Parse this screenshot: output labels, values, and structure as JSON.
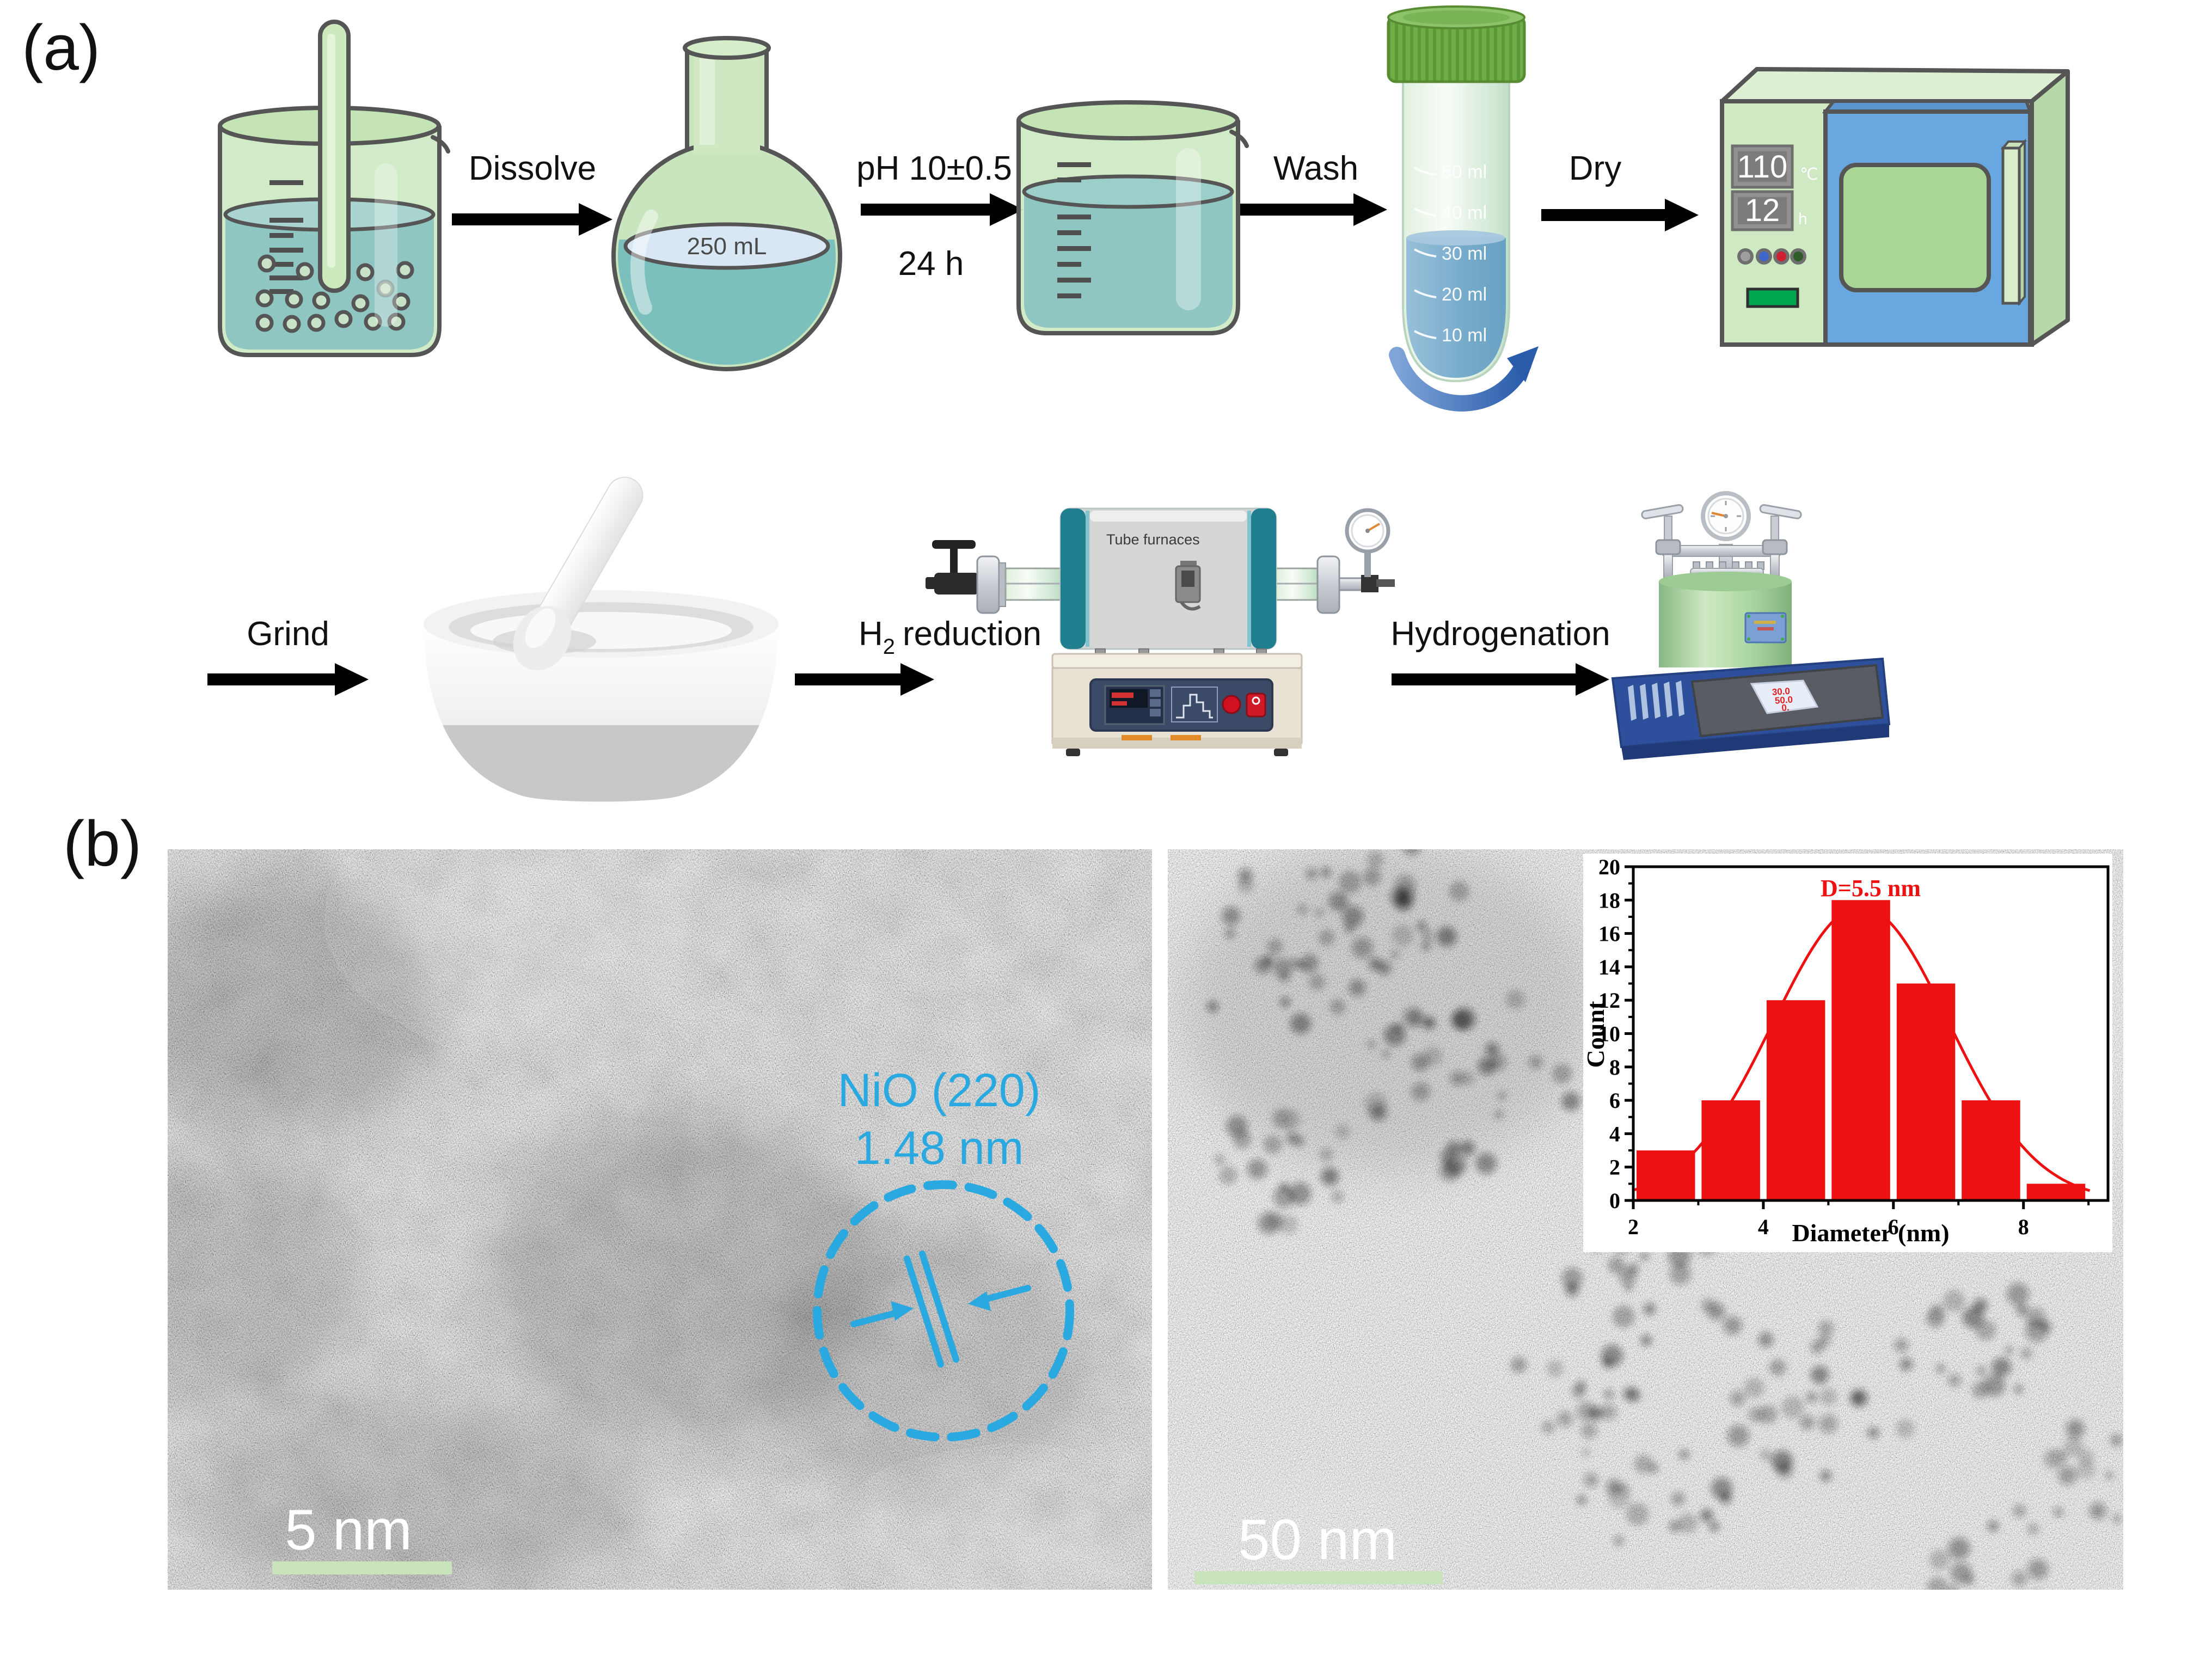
{
  "colors": {
    "annotation_cyan": "#2aa9e1",
    "histogram_red": "#ee1111",
    "scalebar_green": "#c9e4bd",
    "glass_green": "#cde8c2",
    "liquid_teal": "#8fc6c2",
    "oven_door_blue": "#69a7e0",
    "cap_green": "#6fae46",
    "reactor_base_blue": "#2e4f9b",
    "furnace_teal": "#1f7f8e"
  },
  "panel_a": {
    "label": "(a)",
    "row1": {
      "arrow1_label": "Dissolve",
      "flask_volume": "250 mL",
      "arrow2_label_top": "pH 10±0.5",
      "arrow2_label_bottom": "24 h",
      "arrow3_label": "Wash",
      "tube_graduations": [
        "50 ml",
        "40 ml",
        "30 ml",
        "20 ml",
        "10 ml"
      ],
      "arrow4_label": "Dry",
      "oven": {
        "temp_value": "110",
        "temp_unit": "℃",
        "time_value": "12",
        "time_unit": "h"
      }
    },
    "row2": {
      "arrow1_label": "Grind",
      "h2_prefix": "H",
      "h2_sub": "2",
      "h2_suffix": "reduction",
      "furnace_label": "Tube furnaces",
      "arrow3_label": "Hydrogenation",
      "reactor_display": [
        "30.0",
        "50.0",
        "0."
      ]
    }
  },
  "panel_b": {
    "label": "(b)",
    "left_tem": {
      "annotation_line1": "NiO (220)",
      "annotation_line2": "1.48 nm",
      "scale_label": "5 nm"
    },
    "right_tem": {
      "scale_label": "50 nm"
    }
  },
  "chart_data": {
    "type": "bar",
    "title": "",
    "xlabel": "Diameter (nm)",
    "ylabel": "Count",
    "annotation": "D=5.5 nm",
    "categories": [
      2.5,
      3.5,
      4.5,
      5.5,
      6.5,
      7.5,
      8.5
    ],
    "values": [
      3,
      6,
      12,
      18,
      13,
      6,
      1
    ],
    "bar_width": 0.9,
    "xlim": [
      2,
      9.3
    ],
    "ylim": [
      0,
      20
    ],
    "x_ticks": [
      2,
      4,
      6,
      8
    ],
    "y_tick_step": 2,
    "fit_curve": {
      "type": "gaussian",
      "mu": 5.5,
      "sigma": 1.35,
      "amplitude": 17.6
    },
    "bar_color": "#ee1111",
    "curve_color": "#ee1111",
    "legend": null,
    "grid": false
  }
}
